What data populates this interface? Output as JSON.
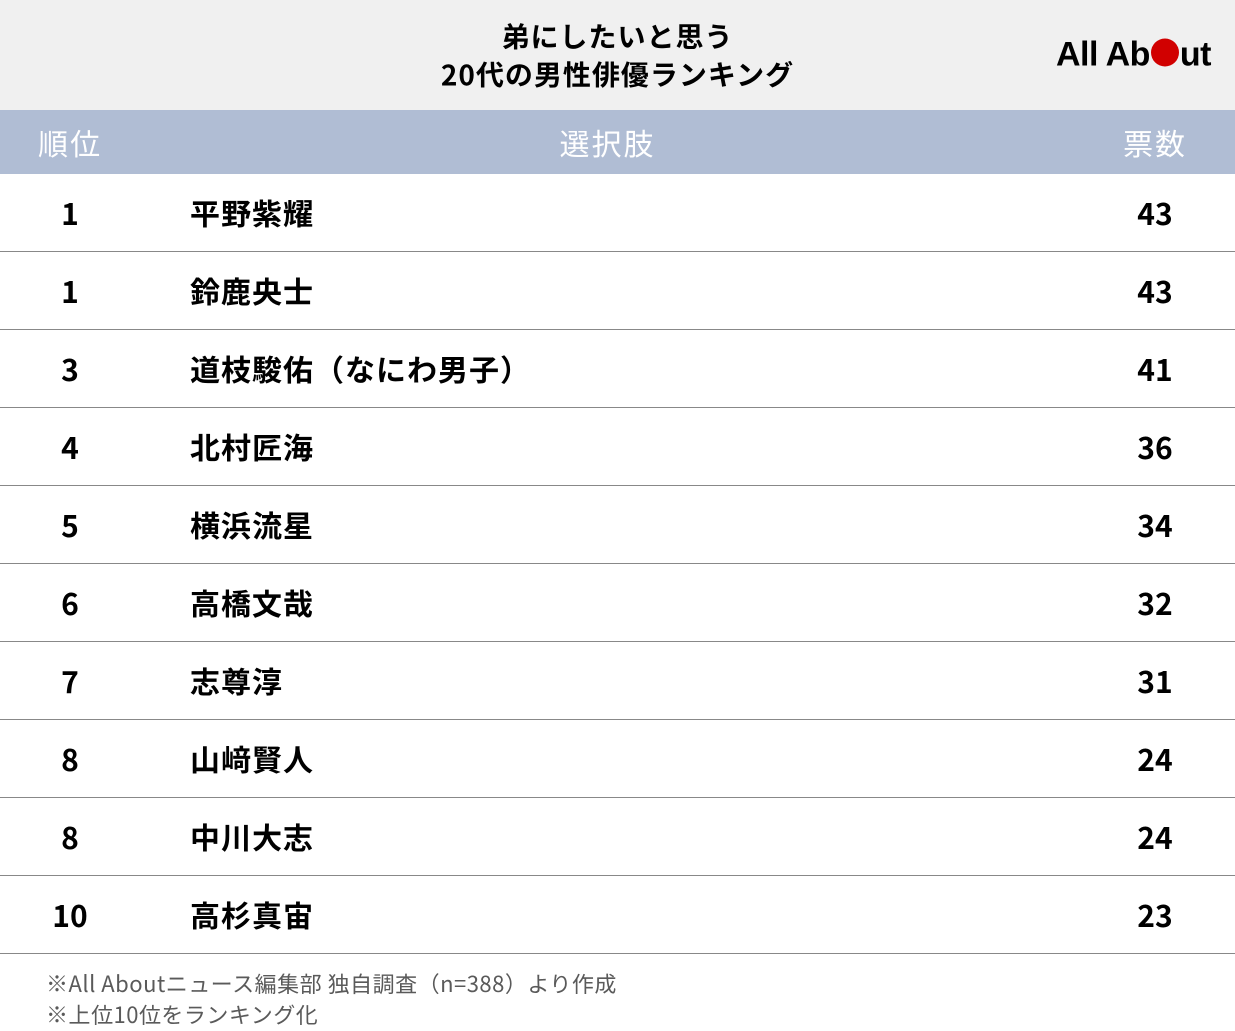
{
  "header": {
    "title_line1": "弟にしたいと思う",
    "title_line2": "20代の男性俳優ランキング",
    "logo_prefix": "All Ab",
    "logo_suffix": "ut",
    "logo_dot_color": "#d10000",
    "header_bg": "#f0f0f0",
    "title_fontsize": 28,
    "title_color": "#000000"
  },
  "table": {
    "header_bg": "#b0bdd4",
    "header_text_color": "#ffffff",
    "header_fontsize": 30,
    "row_border_color": "#888888",
    "cell_fontsize": 30,
    "cell_color": "#000000",
    "columns": {
      "rank": "順位",
      "name": "選択肢",
      "votes": "票数"
    },
    "col_widths": {
      "rank": 140,
      "name": "flex",
      "votes": 160
    },
    "rows": [
      {
        "rank": "1",
        "name": "平野紫耀",
        "votes": "43"
      },
      {
        "rank": "1",
        "name": "鈴鹿央士",
        "votes": "43"
      },
      {
        "rank": "3",
        "name": "道枝駿佑（なにわ男子）",
        "votes": "41"
      },
      {
        "rank": "4",
        "name": "北村匠海",
        "votes": "36"
      },
      {
        "rank": "5",
        "name": "横浜流星",
        "votes": "34"
      },
      {
        "rank": "6",
        "name": "高橋文哉",
        "votes": "32"
      },
      {
        "rank": "7",
        "name": "志尊淳",
        "votes": "31"
      },
      {
        "rank": "8",
        "name": "山﨑賢人",
        "votes": "24"
      },
      {
        "rank": "8",
        "name": "中川大志",
        "votes": "24"
      },
      {
        "rank": "10",
        "name": "高杉真宙",
        "votes": "23"
      }
    ]
  },
  "footnotes": {
    "line1": "※All Aboutニュース編集部 独自調査（n=388）より作成",
    "line2": "※上位10位をランキング化",
    "fontsize": 22,
    "color": "#5a5a5a"
  }
}
